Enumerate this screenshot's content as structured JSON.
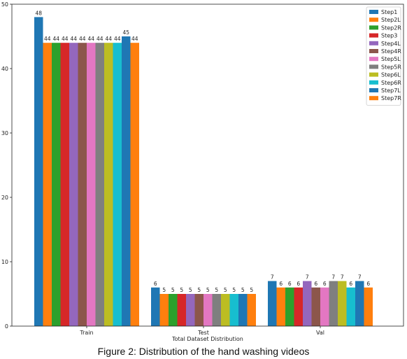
{
  "caption": "Figure 2: Distribution of the hand washing videos",
  "chart_data": {
    "type": "bar",
    "title": "",
    "xlabel": "Total Dataset Distribution",
    "ylabel": "",
    "categories": [
      "Train",
      "Test",
      "Val"
    ],
    "ylim": [
      0,
      50
    ],
    "yticks": [
      0,
      10,
      20,
      30,
      40,
      50
    ],
    "grid": false,
    "legend_position": "top-right",
    "series": [
      {
        "name": "Step1",
        "color": "#1f77b4",
        "values": [
          48,
          6,
          7
        ]
      },
      {
        "name": "Step2L",
        "color": "#ff7f0e",
        "values": [
          44,
          5,
          6
        ]
      },
      {
        "name": "Step2R",
        "color": "#2ca02c",
        "values": [
          44,
          5,
          6
        ]
      },
      {
        "name": "Step3",
        "color": "#d62728",
        "values": [
          44,
          5,
          6
        ]
      },
      {
        "name": "Step4L",
        "color": "#9467bd",
        "values": [
          44,
          5,
          7
        ]
      },
      {
        "name": "Step4R",
        "color": "#8c564b",
        "values": [
          44,
          5,
          6
        ]
      },
      {
        "name": "Step5L",
        "color": "#e377c2",
        "values": [
          44,
          5,
          6
        ]
      },
      {
        "name": "Step5R",
        "color": "#7f7f7f",
        "values": [
          44,
          5,
          7
        ]
      },
      {
        "name": "Step6L",
        "color": "#bcbd22",
        "values": [
          44,
          5,
          7
        ]
      },
      {
        "name": "Step6R",
        "color": "#17becf",
        "values": [
          44,
          5,
          6
        ]
      },
      {
        "name": "Step7L",
        "color": "#1f77b4",
        "values": [
          45,
          5,
          7
        ]
      },
      {
        "name": "Step7R",
        "color": "#ff7f0e",
        "values": [
          44,
          5,
          6
        ]
      }
    ]
  }
}
